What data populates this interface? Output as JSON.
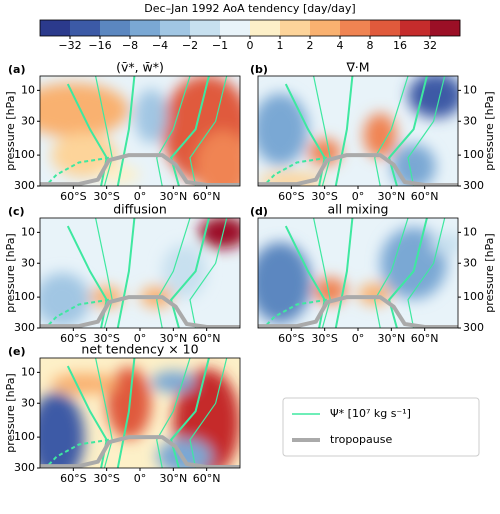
{
  "colorbar": {
    "title": "Dec–Jan 1992 AoA tendency [day/day]",
    "ticks": [
      {
        "value": -32,
        "label": "−32"
      },
      {
        "value": -16,
        "label": "−16"
      },
      {
        "value": -8,
        "label": "−8"
      },
      {
        "value": -4,
        "label": "−4"
      },
      {
        "value": -2,
        "label": "−2"
      },
      {
        "value": -1,
        "label": "−1"
      },
      0,
      1,
      2,
      4,
      8,
      16,
      32
    ],
    "colors": [
      "#2b3a8c",
      "#3c5aa6",
      "#5b87c0",
      "#7aa8d4",
      "#a1c6e3",
      "#c7e0ef",
      "#e8f3f9",
      "#fdf0c8",
      "#fdd49a",
      "#f9b170",
      "#f08452",
      "#e05a3c",
      "#c52c2c",
      "#9b0f26"
    ]
  },
  "chart_data": [
    {
      "type": "contour",
      "label": "(a)",
      "title": "(v̄*, w̄*)",
      "ylabel": "pressure [hPa]",
      "yaxis_side": "left",
      "xlim": [
        -90,
        90
      ],
      "xticks": [
        {
          "value": -60,
          "label": "60°S"
        },
        {
          "value": -30,
          "label": "30°S"
        },
        {
          "value": 0,
          "label": "0°"
        },
        {
          "value": 30,
          "label": "30°N"
        },
        {
          "value": 60,
          "label": "60°N"
        }
      ],
      "ylim": [
        6,
        300
      ],
      "yticks": [
        10,
        30,
        100,
        300
      ],
      "log_y": true,
      "y_inverted": true
    },
    {
      "type": "contour",
      "label": "(b)",
      "title": "∇·M",
      "ylabel": "pressure [hPa]",
      "yaxis_side": "right",
      "xlim": [
        -90,
        90
      ],
      "xticks": [
        {
          "value": -60,
          "label": "60°S"
        },
        {
          "value": -30,
          "label": "30°S"
        },
        {
          "value": 0,
          "label": "0°"
        },
        {
          "value": 30,
          "label": "30°N"
        },
        {
          "value": 60,
          "label": "60°N"
        }
      ],
      "ylim": [
        6,
        300
      ],
      "yticks": [
        10,
        30,
        100,
        300
      ],
      "log_y": true,
      "y_inverted": true
    },
    {
      "type": "contour",
      "label": "(c)",
      "title": "diffusion",
      "ylabel": "pressure [hPa]",
      "yaxis_side": "left",
      "xlim": [
        -90,
        90
      ],
      "xticks": [
        {
          "value": -60,
          "label": "60°S"
        },
        {
          "value": -30,
          "label": "30°S"
        },
        {
          "value": 0,
          "label": "0°"
        },
        {
          "value": 30,
          "label": "30°N"
        },
        {
          "value": 60,
          "label": "60°N"
        }
      ],
      "ylim": [
        6,
        300
      ],
      "yticks": [
        10,
        30,
        100,
        300
      ],
      "log_y": true,
      "y_inverted": true
    },
    {
      "type": "contour",
      "label": "(d)",
      "title": "all mixing",
      "ylabel": "pressure [hPa]",
      "yaxis_side": "right",
      "xlim": [
        -90,
        90
      ],
      "xticks": [
        {
          "value": -60,
          "label": "60°S"
        },
        {
          "value": -30,
          "label": "30°S"
        },
        {
          "value": 0,
          "label": "0°"
        },
        {
          "value": 30,
          "label": "30°N"
        },
        {
          "value": 60,
          "label": "60°N"
        }
      ],
      "ylim": [
        6,
        300
      ],
      "yticks": [
        10,
        30,
        100,
        300
      ],
      "log_y": true,
      "y_inverted": true
    },
    {
      "type": "contour",
      "label": "(e)",
      "title": "net tendency × 10",
      "ylabel": "pressure [hPa]",
      "yaxis_side": "left",
      "xlim": [
        -90,
        90
      ],
      "xticks": [
        {
          "value": -60,
          "label": "60°S"
        },
        {
          "value": -30,
          "label": "30°S"
        },
        {
          "value": 0,
          "label": "0°"
        },
        {
          "value": 30,
          "label": "30°N"
        },
        {
          "value": 60,
          "label": "60°N"
        }
      ],
      "ylim": [
        6,
        300
      ],
      "yticks": [
        10,
        30,
        100,
        300
      ],
      "log_y": true,
      "y_inverted": true
    }
  ],
  "legend": {
    "entries": [
      {
        "name": "Ψ* [10⁷ kg s⁻¹]",
        "color": "#3ee8a0"
      },
      {
        "name": "tropopause",
        "color": "#aaaaaa"
      }
    ]
  }
}
